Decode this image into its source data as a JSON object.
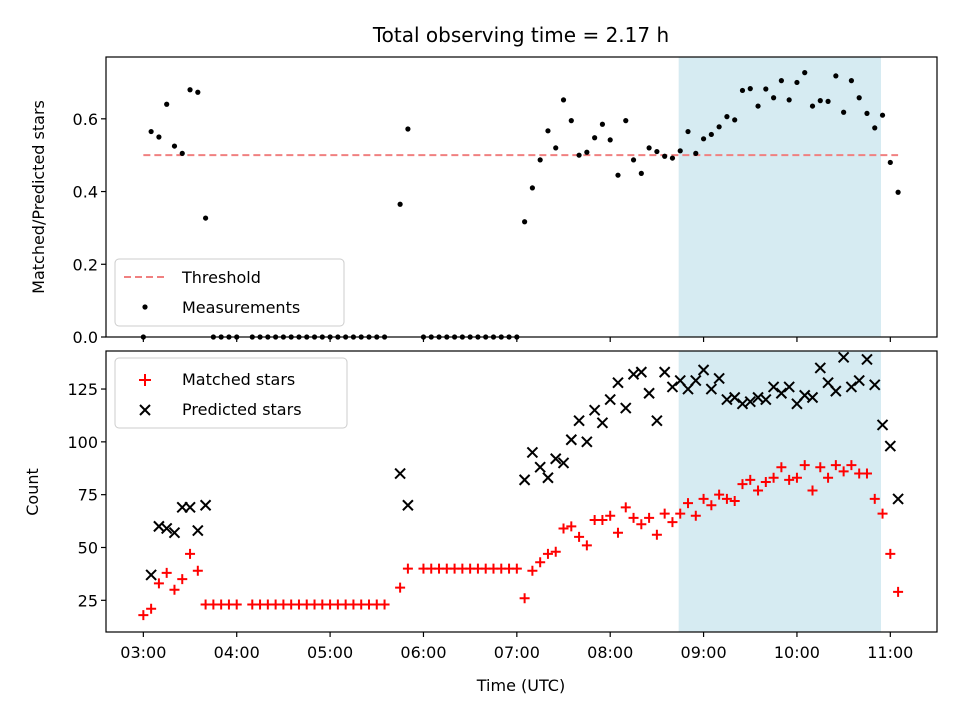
{
  "chart_data": [
    {
      "type": "scatter",
      "title": "Total observing time = 2.17 h",
      "xlabel": "",
      "ylabel": "Matched/Predicted stars",
      "ylim": [
        0,
        0.77
      ],
      "yticks": [
        "0.0",
        "0.2",
        "0.4",
        "0.6"
      ],
      "highlight_span": {
        "x": [
          "08:44",
          "10:54"
        ],
        "color": "#add8e6"
      },
      "threshold": {
        "name": "Threshold",
        "y": 0.5,
        "x": [
          "03:00",
          "11:05"
        ],
        "color": "#f08080"
      },
      "legend_position": "lower left",
      "series": [
        {
          "name": "Measurements",
          "marker": "dot",
          "color": "#000000",
          "points": [
            [
              "03:00",
              0.0
            ],
            [
              "03:05",
              0.565
            ],
            [
              "03:10",
              0.55
            ],
            [
              "03:15",
              0.64
            ],
            [
              "03:20",
              0.525
            ],
            [
              "03:25",
              0.505
            ],
            [
              "03:30",
              0.68
            ],
            [
              "03:35",
              0.673
            ],
            [
              "03:40",
              0.327
            ],
            [
              "03:45",
              0.0
            ],
            [
              "03:50",
              0.0
            ],
            [
              "03:55",
              0.0
            ],
            [
              "04:00",
              0.0
            ],
            [
              "04:10",
              0.0
            ],
            [
              "04:15",
              0.0
            ],
            [
              "04:20",
              0.0
            ],
            [
              "04:25",
              0.0
            ],
            [
              "04:30",
              0.0
            ],
            [
              "04:35",
              0.0
            ],
            [
              "04:40",
              0.0
            ],
            [
              "04:45",
              0.0
            ],
            [
              "04:50",
              0.0
            ],
            [
              "04:55",
              0.0
            ],
            [
              "05:00",
              0.0
            ],
            [
              "05:05",
              0.0
            ],
            [
              "05:10",
              0.0
            ],
            [
              "05:15",
              0.0
            ],
            [
              "05:20",
              0.0
            ],
            [
              "05:25",
              0.0
            ],
            [
              "05:30",
              0.0
            ],
            [
              "05:35",
              0.0
            ],
            [
              "05:45",
              0.365
            ],
            [
              "05:50",
              0.572
            ],
            [
              "06:00",
              0.0
            ],
            [
              "06:05",
              0.0
            ],
            [
              "06:10",
              0.0
            ],
            [
              "06:15",
              0.0
            ],
            [
              "06:20",
              0.0
            ],
            [
              "06:25",
              0.0
            ],
            [
              "06:30",
              0.0
            ],
            [
              "06:35",
              0.0
            ],
            [
              "06:40",
              0.0
            ],
            [
              "06:45",
              0.0
            ],
            [
              "06:50",
              0.0
            ],
            [
              "06:55",
              0.0
            ],
            [
              "07:00",
              0.0
            ],
            [
              "07:05",
              0.317
            ],
            [
              "07:10",
              0.41
            ],
            [
              "07:15",
              0.487
            ],
            [
              "07:20",
              0.567
            ],
            [
              "07:25",
              0.52
            ],
            [
              "07:30",
              0.652
            ],
            [
              "07:35",
              0.595
            ],
            [
              "07:40",
              0.5
            ],
            [
              "07:45",
              0.508
            ],
            [
              "07:50",
              0.548
            ],
            [
              "07:55",
              0.585
            ],
            [
              "08:00",
              0.542
            ],
            [
              "08:05",
              0.445
            ],
            [
              "08:10",
              0.595
            ],
            [
              "08:15",
              0.487
            ],
            [
              "08:20",
              0.45
            ],
            [
              "08:25",
              0.52
            ],
            [
              "08:30",
              0.51
            ],
            [
              "08:35",
              0.497
            ],
            [
              "08:40",
              0.492
            ],
            [
              "08:45",
              0.512
            ],
            [
              "08:50",
              0.565
            ],
            [
              "08:55",
              0.505
            ],
            [
              "09:00",
              0.545
            ],
            [
              "09:05",
              0.557
            ],
            [
              "09:10",
              0.578
            ],
            [
              "09:15",
              0.606
            ],
            [
              "09:20",
              0.597
            ],
            [
              "09:25",
              0.678
            ],
            [
              "09:30",
              0.683
            ],
            [
              "09:35",
              0.635
            ],
            [
              "09:40",
              0.682
            ],
            [
              "09:45",
              0.658
            ],
            [
              "09:50",
              0.705
            ],
            [
              "09:55",
              0.652
            ],
            [
              "10:00",
              0.7
            ],
            [
              "10:05",
              0.727
            ],
            [
              "10:10",
              0.635
            ],
            [
              "10:15",
              0.65
            ],
            [
              "10:20",
              0.648
            ],
            [
              "10:25",
              0.718
            ],
            [
              "10:30",
              0.618
            ],
            [
              "10:35",
              0.705
            ],
            [
              "10:40",
              0.658
            ],
            [
              "10:45",
              0.615
            ],
            [
              "10:50",
              0.575
            ],
            [
              "10:55",
              0.61
            ],
            [
              "11:00",
              0.48
            ],
            [
              "11:05",
              0.398
            ]
          ]
        }
      ]
    },
    {
      "type": "scatter",
      "title": "",
      "xlabel": "Time (UTC)",
      "ylabel": "Count",
      "ylim": [
        10,
        143
      ],
      "yticks": [
        "25",
        "50",
        "75",
        "100",
        "125"
      ],
      "xlim": [
        "02:36",
        "11:30"
      ],
      "xticks": [
        "03:00",
        "04:00",
        "05:00",
        "06:00",
        "07:00",
        "08:00",
        "09:00",
        "10:00",
        "11:00"
      ],
      "highlight_span": {
        "x": [
          "08:44",
          "10:54"
        ],
        "color": "#add8e6"
      },
      "legend_position": "upper left",
      "series": [
        {
          "name": "Matched stars",
          "marker": "plus",
          "color": "#ff0000",
          "points": [
            [
              "03:00",
              18
            ],
            [
              "03:05",
              21
            ],
            [
              "03:10",
              33
            ],
            [
              "03:15",
              38
            ],
            [
              "03:20",
              30
            ],
            [
              "03:25",
              35
            ],
            [
              "03:30",
              47
            ],
            [
              "03:35",
              39
            ],
            [
              "03:40",
              23
            ],
            [
              "03:45",
              23
            ],
            [
              "03:50",
              23
            ],
            [
              "03:55",
              23
            ],
            [
              "04:00",
              23
            ],
            [
              "04:10",
              23
            ],
            [
              "04:15",
              23
            ],
            [
              "04:20",
              23
            ],
            [
              "04:25",
              23
            ],
            [
              "04:30",
              23
            ],
            [
              "04:35",
              23
            ],
            [
              "04:40",
              23
            ],
            [
              "04:45",
              23
            ],
            [
              "04:50",
              23
            ],
            [
              "04:55",
              23
            ],
            [
              "05:00",
              23
            ],
            [
              "05:05",
              23
            ],
            [
              "05:10",
              23
            ],
            [
              "05:15",
              23
            ],
            [
              "05:20",
              23
            ],
            [
              "05:25",
              23
            ],
            [
              "05:30",
              23
            ],
            [
              "05:35",
              23
            ],
            [
              "05:45",
              31
            ],
            [
              "05:50",
              40
            ],
            [
              "06:00",
              40
            ],
            [
              "06:05",
              40
            ],
            [
              "06:10",
              40
            ],
            [
              "06:15",
              40
            ],
            [
              "06:20",
              40
            ],
            [
              "06:25",
              40
            ],
            [
              "06:30",
              40
            ],
            [
              "06:35",
              40
            ],
            [
              "06:40",
              40
            ],
            [
              "06:45",
              40
            ],
            [
              "06:50",
              40
            ],
            [
              "06:55",
              40
            ],
            [
              "07:00",
              40
            ],
            [
              "07:05",
              26
            ],
            [
              "07:10",
              39
            ],
            [
              "07:15",
              43
            ],
            [
              "07:20",
              47
            ],
            [
              "07:25",
              48
            ],
            [
              "07:30",
              59
            ],
            [
              "07:35",
              60
            ],
            [
              "07:40",
              55
            ],
            [
              "07:45",
              51
            ],
            [
              "07:50",
              63
            ],
            [
              "07:55",
              63
            ],
            [
              "08:00",
              65
            ],
            [
              "08:05",
              57
            ],
            [
              "08:10",
              69
            ],
            [
              "08:15",
              64
            ],
            [
              "08:20",
              61
            ],
            [
              "08:25",
              64
            ],
            [
              "08:30",
              56
            ],
            [
              "08:35",
              66
            ],
            [
              "08:40",
              62
            ],
            [
              "08:45",
              66
            ],
            [
              "08:50",
              71
            ],
            [
              "08:55",
              65
            ],
            [
              "09:00",
              73
            ],
            [
              "09:05",
              70
            ],
            [
              "09:10",
              75
            ],
            [
              "09:15",
              73
            ],
            [
              "09:20",
              72
            ],
            [
              "09:25",
              80
            ],
            [
              "09:30",
              82
            ],
            [
              "09:35",
              77
            ],
            [
              "09:40",
              81
            ],
            [
              "09:45",
              83
            ],
            [
              "09:50",
              88
            ],
            [
              "09:55",
              82
            ],
            [
              "10:00",
              83
            ],
            [
              "10:05",
              89
            ],
            [
              "10:10",
              77
            ],
            [
              "10:15",
              88
            ],
            [
              "10:20",
              83
            ],
            [
              "10:25",
              89
            ],
            [
              "10:30",
              86
            ],
            [
              "10:35",
              89
            ],
            [
              "10:40",
              85
            ],
            [
              "10:45",
              85
            ],
            [
              "10:50",
              73
            ],
            [
              "10:55",
              66
            ],
            [
              "11:00",
              47
            ],
            [
              "11:05",
              29
            ]
          ]
        },
        {
          "name": "Predicted stars",
          "marker": "x",
          "color": "#000000",
          "points": [
            [
              "03:05",
              37
            ],
            [
              "03:10",
              60
            ],
            [
              "03:15",
              59
            ],
            [
              "03:20",
              57
            ],
            [
              "03:25",
              69
            ],
            [
              "03:30",
              69
            ],
            [
              "03:35",
              58
            ],
            [
              "03:40",
              70
            ],
            [
              "05:45",
              85
            ],
            [
              "05:50",
              70
            ],
            [
              "07:05",
              82
            ],
            [
              "07:10",
              95
            ],
            [
              "07:15",
              88
            ],
            [
              "07:20",
              83
            ],
            [
              "07:25",
              92
            ],
            [
              "07:30",
              90
            ],
            [
              "07:35",
              101
            ],
            [
              "07:40",
              110
            ],
            [
              "07:45",
              100
            ],
            [
              "07:50",
              115
            ],
            [
              "07:55",
              109
            ],
            [
              "08:00",
              120
            ],
            [
              "08:05",
              128
            ],
            [
              "08:10",
              116
            ],
            [
              "08:15",
              132
            ],
            [
              "08:20",
              133
            ],
            [
              "08:25",
              123
            ],
            [
              "08:30",
              110
            ],
            [
              "08:35",
              133
            ],
            [
              "08:40",
              126
            ],
            [
              "08:45",
              129
            ],
            [
              "08:50",
              125
            ],
            [
              "08:55",
              129
            ],
            [
              "09:00",
              134
            ],
            [
              "09:05",
              125
            ],
            [
              "09:10",
              130
            ],
            [
              "09:15",
              120
            ],
            [
              "09:20",
              121
            ],
            [
              "09:25",
              118
            ],
            [
              "09:30",
              119
            ],
            [
              "09:35",
              121
            ],
            [
              "09:40",
              120
            ],
            [
              "09:45",
              126
            ],
            [
              "09:50",
              123
            ],
            [
              "09:55",
              126
            ],
            [
              "10:00",
              118
            ],
            [
              "10:05",
              122
            ],
            [
              "10:10",
              121
            ],
            [
              "10:15",
              135
            ],
            [
              "10:20",
              128
            ],
            [
              "10:25",
              124
            ],
            [
              "10:30",
              140
            ],
            [
              "10:35",
              126
            ],
            [
              "10:40",
              129
            ],
            [
              "10:45",
              139
            ],
            [
              "10:50",
              127
            ],
            [
              "10:55",
              108
            ],
            [
              "11:00",
              98
            ],
            [
              "11:05",
              73
            ]
          ]
        }
      ]
    }
  ]
}
